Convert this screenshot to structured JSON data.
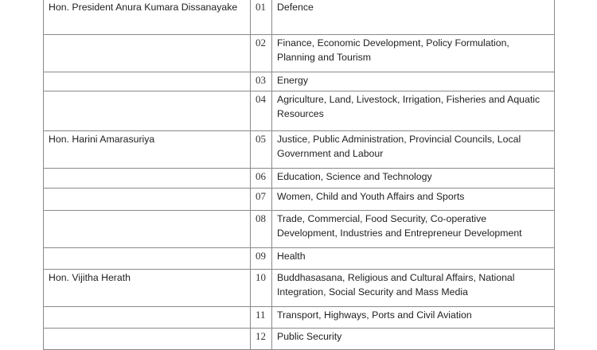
{
  "rows": [
    {
      "minister": "Hon. President Anura Kumara Dissanayake",
      "num": "01",
      "subject": "Defence"
    },
    {
      "minister": "",
      "num": "02",
      "subject": "Finance, Economic Development, Policy Formulation, Planning  and Tourism"
    },
    {
      "minister": "",
      "num": "03",
      "subject": "Energy"
    },
    {
      "minister": "",
      "num": "04",
      "subject": "Agriculture, Land, Livestock, Irrigation, Fisheries and Aquatic Resources"
    },
    {
      "minister": "Hon. Harini Amarasuriya",
      "num": "05",
      "subject": "Justice, Public Administration,  Provincial Councils, Local Government and Labour"
    },
    {
      "minister": "",
      "num": "06",
      "subject": "Education, Science and Technology"
    },
    {
      "minister": "",
      "num": "07",
      "subject": "Women, Child and Youth Affairs and Sports"
    },
    {
      "minister": "",
      "num": "08",
      "subject": "Trade, Commercial, Food Security, Co-operative Development, Industries and Entrepreneur Development"
    },
    {
      "minister": "",
      "num": "09",
      "subject": "Health"
    },
    {
      "minister": "Hon. Vijitha Herath",
      "num": "10",
      "subject": "Buddhasasana, Religious and Cultural Affairs, National Integration, Social Security and Mass Media"
    },
    {
      "minister": "",
      "num": "11",
      "subject": "Transport, Highways, Ports and Civil Aviation"
    },
    {
      "minister": "",
      "num": "12",
      "subject": "Public Security"
    }
  ]
}
